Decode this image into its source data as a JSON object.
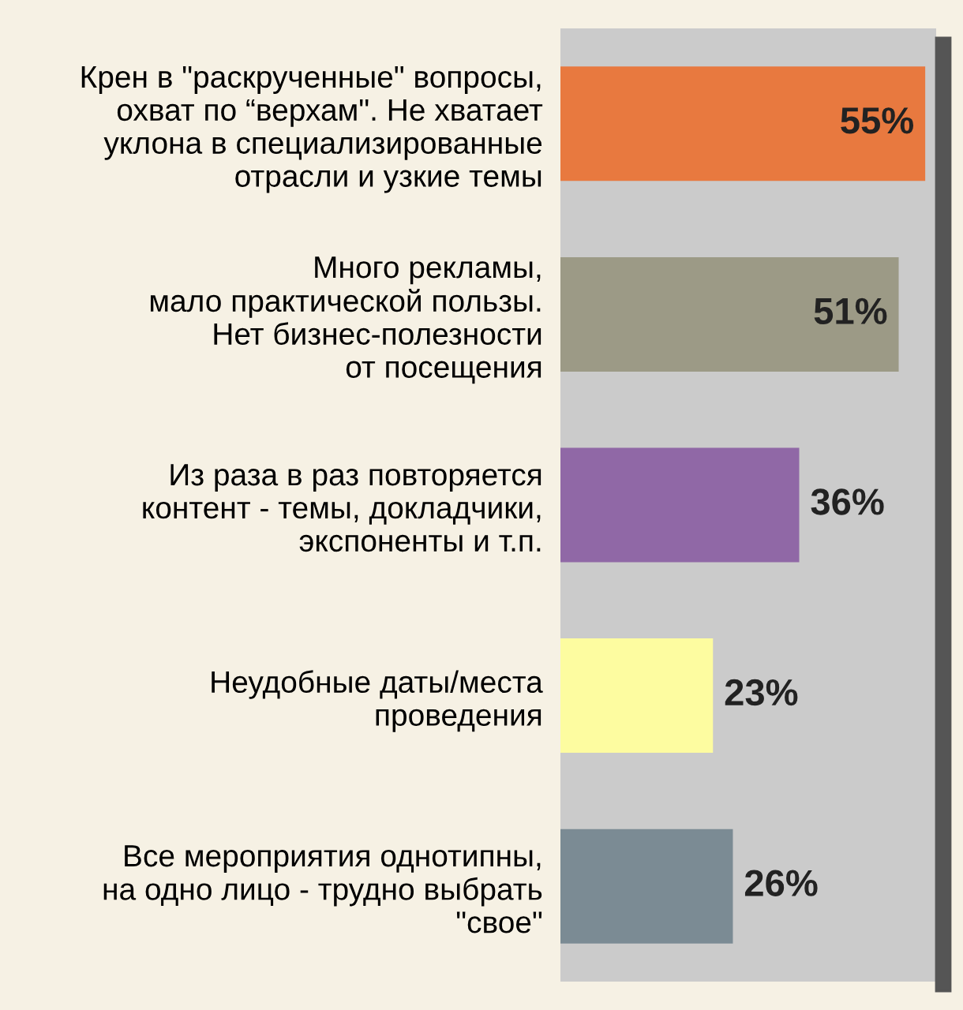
{
  "chart_data": {
    "type": "bar",
    "orientation": "horizontal",
    "categories": [
      "Крен в \"раскрученные\" вопросы,\nохват по “верхам\". Не хватает\nуклона в специализированные\nотрасли и узкие темы",
      "Много рекламы,\nмало практической пользы.\nНет бизнес-полезности\nот посещения",
      "Из раза в раз повторяется\nконтент - темы, докладчики,\nэкспоненты и т.п.",
      "Неудобные даты/места\nпроведения",
      "Все мероприятия однотипны,\nна одно лицо - трудно выбрать\n\"свое\""
    ],
    "values": [
      55,
      51,
      36,
      23,
      26
    ],
    "colors": [
      "#e8793f",
      "#9c9a86",
      "#9068a6",
      "#fdfca0",
      "#7b8b94"
    ],
    "value_labels": [
      "55%",
      "51%",
      "36%",
      "23%",
      "26%"
    ],
    "grid": false,
    "legend": false
  }
}
